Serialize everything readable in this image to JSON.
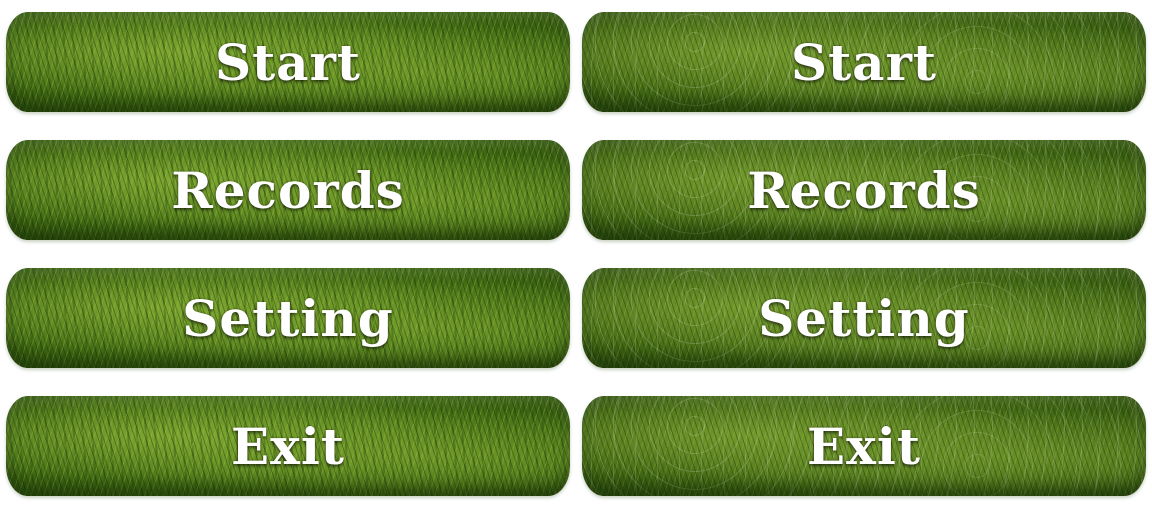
{
  "menu": {
    "normal": [
      {
        "label": "Start"
      },
      {
        "label": "Records"
      },
      {
        "label": "Setting"
      },
      {
        "label": "Exit"
      }
    ],
    "hover": [
      {
        "label": "Start"
      },
      {
        "label": "Records"
      },
      {
        "label": "Setting"
      },
      {
        "label": "Exit"
      }
    ]
  },
  "colors": {
    "grass_light": "#7ea832",
    "grass_mid": "#5c8a22",
    "grass_dark": "#2f5410",
    "label_text": "#ffffff",
    "background": "#ffffff"
  }
}
